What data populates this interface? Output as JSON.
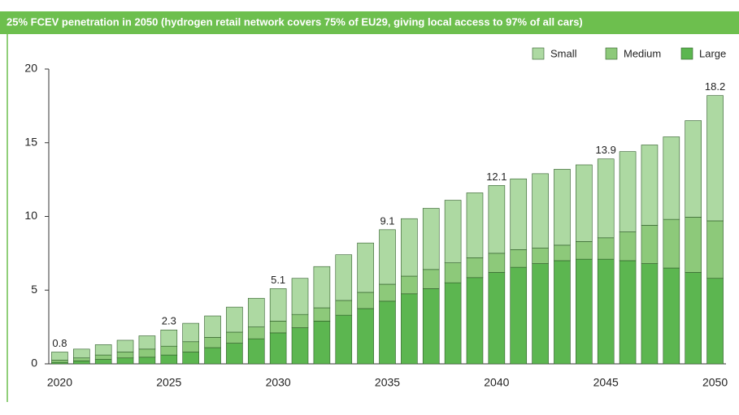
{
  "chart_data": {
    "type": "stacked_bar",
    "title": "25% FCEV penetration in 2050 (hydrogen retail network covers 75% of EU29, giving local access to 97% of all cars)",
    "categories": [
      "2020",
      "2021",
      "2022",
      "2023",
      "2024",
      "2025",
      "2026",
      "2027",
      "2028",
      "2029",
      "2030",
      "2031",
      "2032",
      "2033",
      "2034",
      "2035",
      "2036",
      "2037",
      "2038",
      "2039",
      "2040",
      "2041",
      "2042",
      "2043",
      "2044",
      "2045",
      "2046",
      "2047",
      "2048",
      "2049",
      "2050"
    ],
    "xticks": [
      "2020",
      "2025",
      "2030",
      "2035",
      "2040",
      "2045",
      "2050"
    ],
    "series": [
      {
        "name": "Large",
        "color": "#5cb650",
        "values": [
          0.1,
          0.2,
          0.3,
          0.4,
          0.45,
          0.6,
          0.8,
          1.1,
          1.4,
          1.7,
          2.1,
          2.45,
          2.9,
          3.3,
          3.75,
          4.25,
          4.75,
          5.1,
          5.5,
          5.85,
          6.2,
          6.55,
          6.8,
          7.0,
          7.1,
          7.1,
          7.0,
          6.8,
          6.5,
          6.2,
          5.8
        ]
      },
      {
        "name": "Medium",
        "color": "#8dc97a",
        "values": [
          0.15,
          0.2,
          0.3,
          0.4,
          0.55,
          0.6,
          0.7,
          0.7,
          0.75,
          0.8,
          0.8,
          0.9,
          0.9,
          1.0,
          1.1,
          1.15,
          1.2,
          1.3,
          1.35,
          1.35,
          1.3,
          1.2,
          1.05,
          1.05,
          1.2,
          1.45,
          1.95,
          2.6,
          3.3,
          3.75,
          3.9
        ]
      },
      {
        "name": "Small",
        "color": "#add9a2",
        "values": [
          0.55,
          0.6,
          0.7,
          0.8,
          0.9,
          1.1,
          1.25,
          1.45,
          1.7,
          1.95,
          2.2,
          2.45,
          2.8,
          3.1,
          3.35,
          3.7,
          3.9,
          4.15,
          4.25,
          4.4,
          4.6,
          4.8,
          5.05,
          5.15,
          5.2,
          5.35,
          5.45,
          5.45,
          5.6,
          6.55,
          8.5
        ]
      }
    ],
    "legend_order": [
      "Small",
      "Medium",
      "Large"
    ],
    "annotations": [
      {
        "category": "2020",
        "text": "0.8"
      },
      {
        "category": "2025",
        "text": "2.3"
      },
      {
        "category": "2030",
        "text": "5.1"
      },
      {
        "category": "2035",
        "text": "9.1"
      },
      {
        "category": "2040",
        "text": "12.1"
      },
      {
        "category": "2045",
        "text": "13.9"
      },
      {
        "category": "2050",
        "text": "18.2"
      }
    ],
    "ylim": [
      0,
      20
    ],
    "yticks": [
      0,
      5,
      10,
      15,
      20
    ],
    "grid": false,
    "legend": "top-right"
  }
}
